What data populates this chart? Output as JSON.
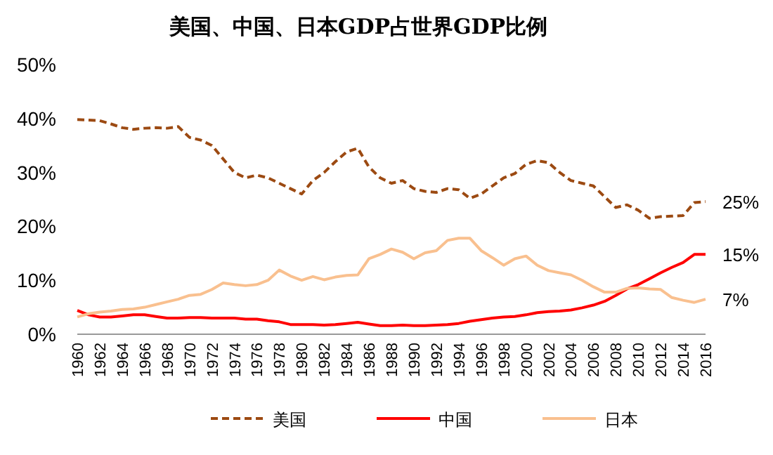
{
  "chart_data": {
    "type": "line",
    "title": "美国、中国、日本GDP占世界GDP比例",
    "x": [
      1960,
      1961,
      1962,
      1963,
      1964,
      1965,
      1966,
      1967,
      1968,
      1969,
      1970,
      1971,
      1972,
      1973,
      1974,
      1975,
      1976,
      1977,
      1978,
      1979,
      1980,
      1981,
      1982,
      1983,
      1984,
      1985,
      1986,
      1987,
      1988,
      1989,
      1990,
      1991,
      1992,
      1993,
      1994,
      1995,
      1996,
      1997,
      1998,
      1999,
      2000,
      2001,
      2002,
      2003,
      2004,
      2005,
      2006,
      2007,
      2008,
      2009,
      2010,
      2011,
      2012,
      2013,
      2014,
      2015,
      2016
    ],
    "xlim": [
      1960,
      2016
    ],
    "xticks": [
      1960,
      1962,
      1964,
      1966,
      1968,
      1970,
      1972,
      1974,
      1976,
      1978,
      1980,
      1982,
      1984,
      1986,
      1988,
      1990,
      1992,
      1994,
      1996,
      1998,
      2000,
      2002,
      2004,
      2006,
      2008,
      2010,
      2012,
      2014,
      2016
    ],
    "ylim": [
      0,
      50
    ],
    "yticks": [
      {
        "value": 0,
        "label": "0%"
      },
      {
        "value": 10,
        "label": "10%"
      },
      {
        "value": 20,
        "label": "20%"
      },
      {
        "value": 30,
        "label": "30%"
      },
      {
        "value": 40,
        "label": "40%"
      },
      {
        "value": 50,
        "label": "50%"
      }
    ],
    "grid": false,
    "legend": "bottom",
    "series": [
      {
        "name": "美国",
        "color": "#9c4a12",
        "line_style": "dashed",
        "values": [
          39.8,
          39.7,
          39.6,
          39,
          38.3,
          38,
          38.2,
          38.3,
          38.2,
          38.5,
          36.5,
          36,
          35,
          32.5,
          30,
          29,
          29.5,
          29,
          28,
          27,
          26,
          28.5,
          30,
          32,
          33.8,
          34.5,
          31,
          29,
          28,
          28.5,
          27,
          26.5,
          26.3,
          27,
          26.8,
          25.2,
          26,
          27.5,
          29,
          29.8,
          31.5,
          32.2,
          31.8,
          30,
          28.5,
          28,
          27.5,
          25.5,
          23.5,
          24,
          23,
          21.5,
          21.8,
          21.9,
          22,
          24.4,
          24.6
        ]
      },
      {
        "name": "中国",
        "color": "#ff0000",
        "line_style": "solid",
        "values": [
          4.4,
          3.6,
          3.2,
          3.2,
          3.4,
          3.6,
          3.6,
          3.3,
          3,
          3,
          3.1,
          3.1,
          3,
          3,
          3,
          2.8,
          2.8,
          2.5,
          2.3,
          1.8,
          1.8,
          1.8,
          1.7,
          1.8,
          2,
          2.2,
          1.9,
          1.6,
          1.6,
          1.7,
          1.6,
          1.6,
          1.7,
          1.8,
          2,
          2.4,
          2.7,
          3,
          3.2,
          3.3,
          3.6,
          4,
          4.2,
          4.3,
          4.5,
          4.9,
          5.4,
          6.1,
          7.2,
          8.4,
          9.2,
          10.3,
          11.4,
          12.4,
          13.3,
          14.8,
          14.8
        ]
      },
      {
        "name": "日本",
        "color": "#f9c08f",
        "line_style": "solid",
        "values": [
          3.2,
          3.8,
          4.1,
          4.3,
          4.6,
          4.7,
          5,
          5.5,
          6,
          6.5,
          7.2,
          7.4,
          8.3,
          9.5,
          9.2,
          9,
          9.2,
          10,
          11.9,
          10.8,
          10,
          10.7,
          10.1,
          10.6,
          10.9,
          11,
          14,
          14.8,
          15.8,
          15.2,
          14,
          15.1,
          15.5,
          17.4,
          17.8,
          17.8,
          15.5,
          14.2,
          12.8,
          14,
          14.5,
          12.8,
          11.8,
          11.4,
          11,
          10,
          8.8,
          7.8,
          7.8,
          8.5,
          8.6,
          8.4,
          8.3,
          6.8,
          6.3,
          5.9,
          6.5
        ]
      }
    ],
    "annotations": [
      "25%",
      "15%",
      "7%"
    ]
  }
}
